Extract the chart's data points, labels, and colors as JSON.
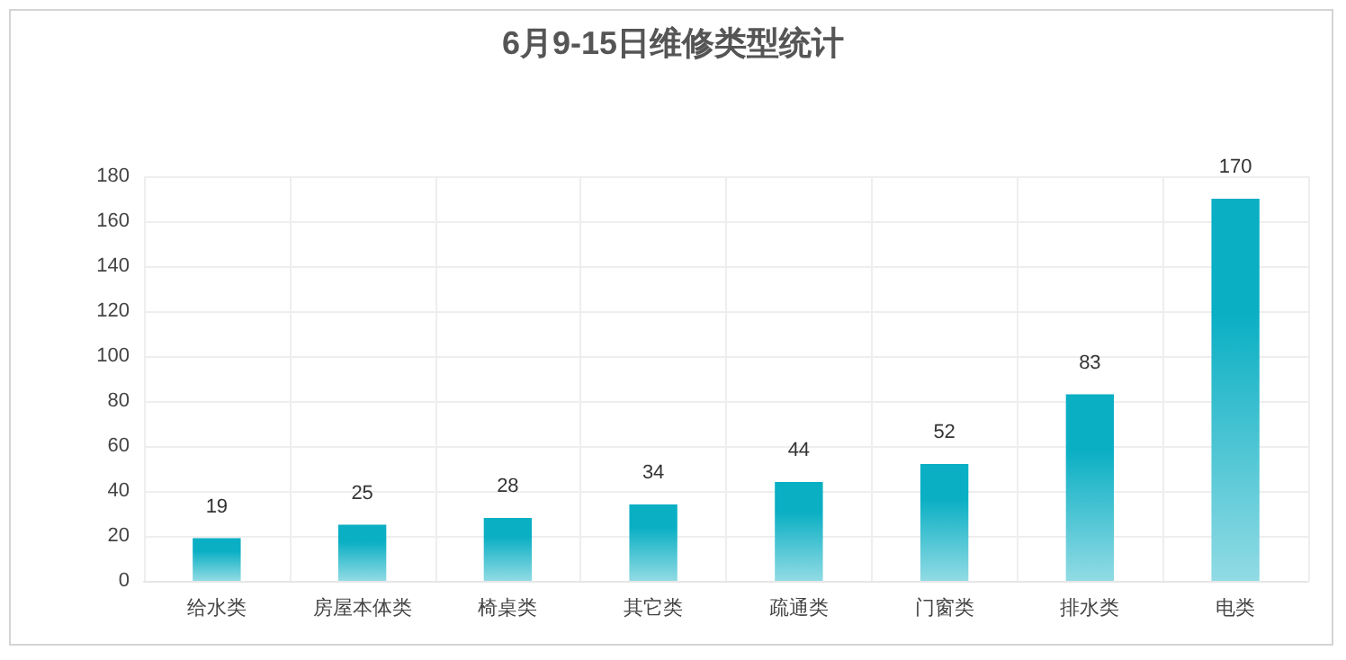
{
  "chart_data": {
    "type": "bar",
    "title": "6月9-15日维修类型统计",
    "categories": [
      "给水类",
      "房屋本体类",
      "椅桌类",
      "其它类",
      "疏通类",
      "门窗类",
      "排水类",
      "电类"
    ],
    "values": [
      19,
      25,
      28,
      34,
      44,
      52,
      83,
      170
    ],
    "color": "#0aafc4",
    "ylim": [
      0,
      180
    ],
    "yticks": [
      0,
      20,
      40,
      60,
      80,
      100,
      120,
      140,
      160,
      180
    ],
    "grid": true,
    "data_labels": true
  }
}
